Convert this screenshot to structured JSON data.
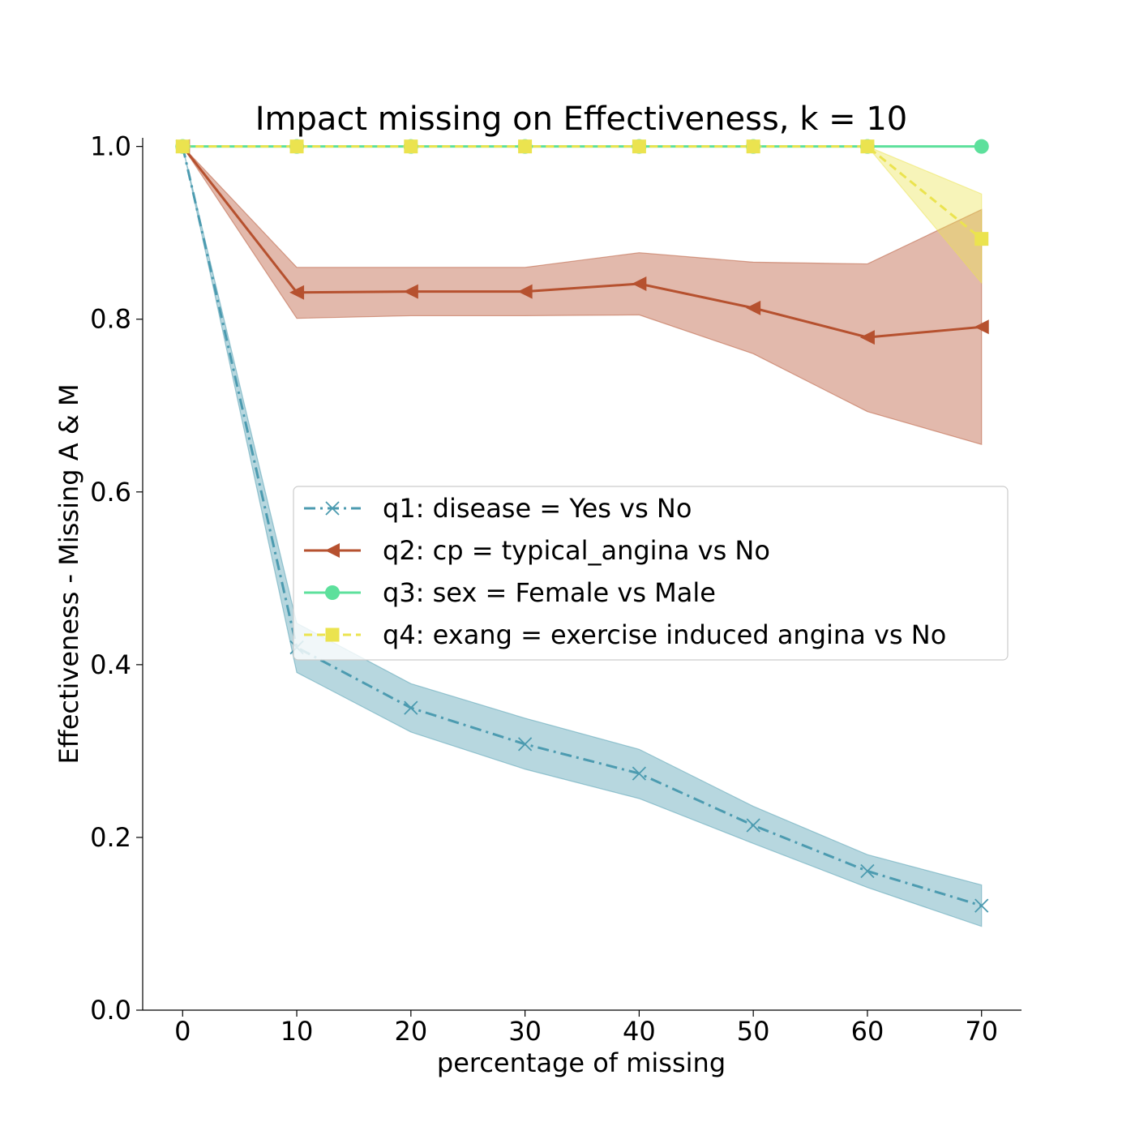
{
  "chart_data": {
    "type": "line",
    "title": "Impact missing on Effectiveness, k = 10",
    "xlabel": "percentage of missing",
    "ylabel": "Effectiveness - Missing A & M",
    "x": [
      0,
      10,
      20,
      30,
      40,
      50,
      60,
      70
    ],
    "xlim": [
      -3.5,
      73.5
    ],
    "ylim": [
      0.0,
      1.01
    ],
    "xticks": [
      0,
      10,
      20,
      30,
      40,
      50,
      60,
      70
    ],
    "xtick_labels": [
      "0",
      "10",
      "20",
      "30",
      "40",
      "50",
      "60",
      "70"
    ],
    "yticks": [
      0.0,
      0.2,
      0.4,
      0.6,
      0.8,
      1.0
    ],
    "ytick_labels": [
      "0.0",
      "0.2",
      "0.4",
      "0.6",
      "0.8",
      "1.0"
    ],
    "grid": false,
    "legend_position": "center-right",
    "series": [
      {
        "name": "q1: disease = Yes vs No",
        "color": "#4c9bb0",
        "line_style": "dashdot",
        "marker": "x",
        "values": [
          1.0,
          0.42,
          0.35,
          0.308,
          0.274,
          0.214,
          0.161,
          0.121
        ],
        "lower": [
          1.0,
          0.391,
          0.322,
          0.279,
          0.245,
          0.193,
          0.142,
          0.097
        ],
        "upper": [
          1.0,
          0.448,
          0.378,
          0.338,
          0.302,
          0.236,
          0.18,
          0.145
        ]
      },
      {
        "name": "q2: cp = typical_angina vs No",
        "color": "#b6512f",
        "line_style": "solid",
        "marker": "triangle-left",
        "values": [
          1.0,
          0.831,
          0.832,
          0.832,
          0.841,
          0.813,
          0.779,
          0.791
        ],
        "lower": [
          1.0,
          0.801,
          0.804,
          0.804,
          0.805,
          0.76,
          0.693,
          0.655
        ],
        "upper": [
          1.0,
          0.86,
          0.86,
          0.86,
          0.877,
          0.866,
          0.864,
          0.927
        ]
      },
      {
        "name": "q3: sex = Female vs Male",
        "color": "#5de09c",
        "line_style": "solid",
        "marker": "circle",
        "values": [
          1.0,
          1.0,
          1.0,
          1.0,
          1.0,
          1.0,
          1.0,
          1.0
        ],
        "lower": [
          1.0,
          1.0,
          1.0,
          1.0,
          1.0,
          1.0,
          1.0,
          1.0
        ],
        "upper": [
          1.0,
          1.0,
          1.0,
          1.0,
          1.0,
          1.0,
          1.0,
          1.0
        ]
      },
      {
        "name": "q4: exang = exercise induced angina vs No",
        "color": "#ebe34f",
        "line_style": "dashed",
        "marker": "square",
        "values": [
          1.0,
          1.0,
          1.0,
          1.0,
          1.0,
          1.0,
          1.0,
          0.893
        ],
        "lower": [
          1.0,
          1.0,
          1.0,
          1.0,
          1.0,
          1.0,
          1.0,
          0.842
        ],
        "upper": [
          1.0,
          1.0,
          1.0,
          1.0,
          1.0,
          1.0,
          1.0,
          0.945
        ]
      }
    ]
  }
}
